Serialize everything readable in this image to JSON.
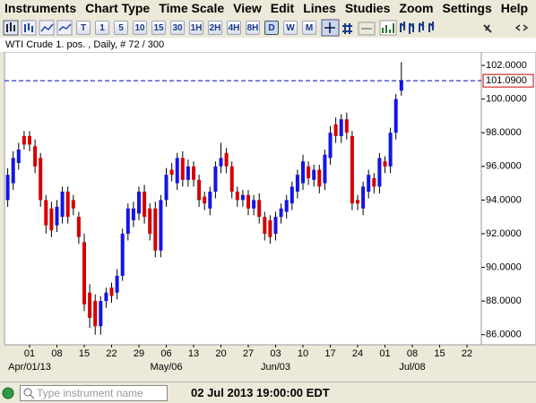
{
  "menu": [
    "Instruments",
    "Chart Type",
    "Time Scale",
    "View",
    "Edit",
    "Lines",
    "Studies",
    "Zoom",
    "Settings",
    "Help"
  ],
  "toolbar": {
    "periods": [
      "T",
      "1",
      "5",
      "10",
      "15",
      "30",
      "1H",
      "2H",
      "4H",
      "8H",
      "D",
      "W",
      "M"
    ],
    "selected": "D"
  },
  "status": {
    "search_placeholder": "Type instrument name",
    "datetime": "02 Jul 2013 19:00:00 EDT"
  },
  "chart_data": {
    "type": "candlestick",
    "title": "WTI Crude 1. pos. , Daily, # 72 / 300",
    "up_color": "#1414e6",
    "down_color": "#d40000",
    "wick_color": "#000000",
    "categories": [
      null,
      null,
      null,
      null,
      "01",
      null,
      null,
      null,
      null,
      "08",
      null,
      null,
      null,
      null,
      "15",
      null,
      null,
      null,
      null,
      "22",
      null,
      null,
      null,
      null,
      "29",
      null,
      null,
      null,
      null,
      "06",
      null,
      null,
      null,
      null,
      "13",
      null,
      null,
      null,
      null,
      "20",
      null,
      null,
      null,
      null,
      "27",
      null,
      null,
      null,
      null,
      "03",
      null,
      null,
      null,
      null,
      "10",
      null,
      null,
      null,
      null,
      "17",
      null,
      null,
      null,
      null,
      "24",
      null,
      null,
      null,
      null,
      "01",
      null,
      null,
      null,
      null,
      "08",
      null,
      null,
      null,
      null,
      "15",
      null,
      null,
      null,
      null,
      "22",
      null,
      null
    ],
    "month_categories": [
      null,
      null,
      null,
      null,
      "Apr/01/13",
      null,
      null,
      null,
      null,
      null,
      null,
      null,
      null,
      null,
      null,
      null,
      null,
      null,
      null,
      null,
      null,
      null,
      null,
      null,
      null,
      null,
      null,
      null,
      null,
      "May/06",
      null,
      null,
      null,
      null,
      null,
      null,
      null,
      null,
      null,
      null,
      null,
      null,
      null,
      null,
      null,
      null,
      null,
      null,
      null,
      "Jun/03",
      null,
      null,
      null,
      null,
      null,
      null,
      null,
      null,
      null,
      null,
      null,
      null,
      null,
      null,
      null,
      null,
      null,
      null,
      null,
      null,
      null,
      null,
      null,
      null,
      "Jul/08",
      null,
      null,
      null,
      null,
      null,
      null,
      null,
      null,
      null,
      null,
      null,
      null
    ],
    "open": [
      94,
      95,
      96.2,
      97.8,
      97.8,
      97.2,
      96.5,
      94,
      93.5,
      92.5,
      93,
      94.5,
      94,
      93,
      91.5,
      88.5,
      88,
      86.5,
      88,
      88.8,
      88.5,
      89.5,
      92,
      92.8,
      93.2,
      94.5,
      93.5,
      93.5,
      91,
      94,
      95.8,
      95,
      96.5,
      95.2,
      96,
      95.2,
      94.2,
      93.5,
      94.5,
      96,
      96.8,
      96,
      94.5,
      94,
      94.3,
      93.5,
      94,
      93,
      92.8,
      92,
      93,
      93.3,
      93.8,
      94.5,
      95,
      96,
      95.2,
      95.8,
      95,
      96.5,
      98.5,
      97.8,
      98.8,
      97.8,
      94,
      93.5,
      94.5,
      95.3,
      94.8,
      96.3,
      96,
      98,
      100.5,
      null,
      null,
      null,
      null,
      null,
      null,
      null,
      null,
      null,
      null,
      null,
      null,
      null,
      null
    ],
    "high": [
      95.9,
      96.9,
      97.4,
      98.1,
      98.1,
      97.6,
      96.8,
      94.3,
      93.9,
      94.0,
      94.8,
      94.8,
      94.3,
      93.3,
      92.0,
      89.0,
      88.4,
      88.3,
      88.8,
      89.1,
      89.9,
      92.3,
      93.8,
      93.9,
      94.8,
      94.9,
      93.8,
      93.9,
      94.3,
      95.9,
      96.2,
      96.8,
      96.9,
      96.4,
      96.3,
      95.5,
      94.5,
      94.8,
      96.3,
      97.4,
      97.1,
      96.3,
      94.8,
      94.6,
      94.6,
      94.3,
      94.4,
      93.3,
      93.1,
      93.3,
      93.8,
      94.3,
      95.1,
      95.8,
      96.7,
      96.3,
      96.1,
      96.1,
      97.0,
      98.4,
      98.9,
      99.1,
      99.2,
      98.1,
      94.3,
      95.1,
      95.8,
      95.6,
      96.8,
      96.6,
      98.3,
      100.3,
      102.2,
      null,
      null,
      null,
      null,
      null,
      null,
      null,
      null,
      null,
      null,
      null,
      null,
      null,
      null
    ],
    "low": [
      93.6,
      94.6,
      95.8,
      97.0,
      96.9,
      95.6,
      93.6,
      92.0,
      91.8,
      92.1,
      92.6,
      92.6,
      93.1,
      91.4,
      87.4,
      86.4,
      86.0,
      86.0,
      87.6,
      87.9,
      88.1,
      89.2,
      91.6,
      92.4,
      92.8,
      92.6,
      91.6,
      90.6,
      90.6,
      93.6,
      95.1,
      94.6,
      94.8,
      94.8,
      94.8,
      93.6,
      93.4,
      93.1,
      94.1,
      95.6,
      95.6,
      94.1,
      93.6,
      93.6,
      93.1,
      93.1,
      92.6,
      91.6,
      91.4,
      91.6,
      92.6,
      92.9,
      93.4,
      94.1,
      94.6,
      94.9,
      94.8,
      94.4,
      94.6,
      96.1,
      97.4,
      97.4,
      97.6,
      93.4,
      93.4,
      93.1,
      94.1,
      94.4,
      94.4,
      95.6,
      95.6,
      97.6,
      100.2,
      null,
      null,
      null,
      null,
      null,
      null,
      null,
      null,
      null,
      null,
      null,
      null,
      null,
      null
    ],
    "close": [
      95.5,
      96.5,
      97,
      97.3,
      97.3,
      96,
      94,
      92.5,
      92.2,
      93.6,
      94.5,
      93,
      93.5,
      91.8,
      87.8,
      87,
      86.5,
      88,
      88.5,
      88.3,
      89.5,
      92,
      93.5,
      93.5,
      94.5,
      93,
      92,
      91,
      94,
      95.5,
      95.5,
      96.5,
      95.2,
      96,
      95.2,
      94,
      93.8,
      94.5,
      96,
      96.5,
      96,
      94.5,
      94,
      94.3,
      93.5,
      94,
      93,
      92,
      91.8,
      93,
      93.5,
      94,
      94.8,
      95.5,
      96.3,
      95.3,
      95.8,
      94.8,
      96.7,
      98,
      97.8,
      98.8,
      98,
      93.8,
      93.8,
      94.8,
      95.5,
      94.8,
      96.5,
      96,
      98,
      100,
      101.09,
      null,
      null,
      null,
      null,
      null,
      null,
      null,
      null,
      null,
      null,
      null,
      null,
      null,
      null
    ],
    "ylim": [
      85.4,
      102.8
    ],
    "yticks": [
      {
        "value": 86,
        "label": "86.0000"
      },
      {
        "value": 88,
        "label": "88.0000"
      },
      {
        "value": 90,
        "label": "90.0000"
      },
      {
        "value": 92,
        "label": "92.0000"
      },
      {
        "value": 94,
        "label": "94.0000"
      },
      {
        "value": 96,
        "label": "96.0000"
      },
      {
        "value": 98,
        "label": "98.0000"
      },
      {
        "value": 100,
        "label": "100.0000"
      },
      {
        "value": 102,
        "label": "102.0000"
      }
    ],
    "last_price": {
      "value": 101.09,
      "label": "101.0900"
    },
    "last_price_color": "#0000cc",
    "last_price_label_color": "#cc0000"
  }
}
